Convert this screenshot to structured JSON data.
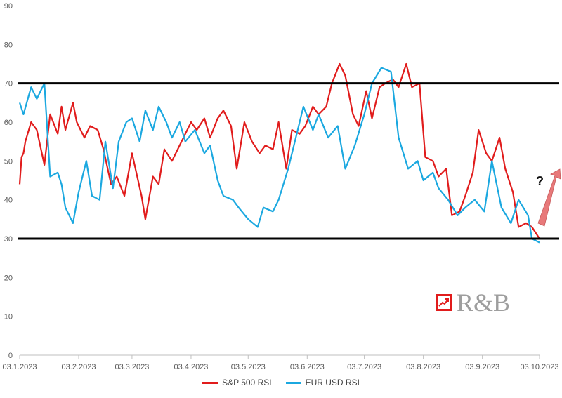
{
  "chart_data": {
    "type": "line",
    "title": "",
    "xlabel": "",
    "ylabel": "",
    "ylim": [
      0,
      90
    ],
    "yticks": [
      0,
      10,
      20,
      30,
      40,
      50,
      60,
      70,
      80,
      90
    ],
    "xlim": [
      "2023-01-03",
      "2023-10-03"
    ],
    "xticks": [
      "03.1.2023",
      "03.2.2023",
      "03.3.2023",
      "03.4.2023",
      "03.5.2023",
      "03.6.2023",
      "03.7.2023",
      "03.8.2023",
      "03.9.2023",
      "03.10.2023"
    ],
    "grid": false,
    "legend_position": "bottom",
    "horizontal_lines": [
      70,
      30
    ],
    "series": [
      {
        "name": "S&P 500 RSI",
        "color": "#e11c1c",
        "x": [
          "2023-01-03",
          "2023-01-04",
          "2023-01-05",
          "2023-01-06",
          "2023-01-09",
          "2023-01-12",
          "2023-01-16",
          "2023-01-19",
          "2023-01-23",
          "2023-01-25",
          "2023-01-27",
          "2023-01-31",
          "2023-02-02",
          "2023-02-06",
          "2023-02-09",
          "2023-02-13",
          "2023-02-16",
          "2023-02-20",
          "2023-02-23",
          "2023-02-27",
          "2023-03-03",
          "2023-03-08",
          "2023-03-10",
          "2023-03-14",
          "2023-03-17",
          "2023-03-20",
          "2023-03-24",
          "2023-03-29",
          "2023-04-03",
          "2023-04-06",
          "2023-04-10",
          "2023-04-13",
          "2023-04-17",
          "2023-04-20",
          "2023-04-24",
          "2023-04-27",
          "2023-05-01",
          "2023-05-05",
          "2023-05-09",
          "2023-05-12",
          "2023-05-16",
          "2023-05-19",
          "2023-05-23",
          "2023-05-26",
          "2023-05-30",
          "2023-06-02",
          "2023-06-06",
          "2023-06-09",
          "2023-06-13",
          "2023-06-16",
          "2023-06-20",
          "2023-06-23",
          "2023-06-27",
          "2023-06-30",
          "2023-07-04",
          "2023-07-07",
          "2023-07-11",
          "2023-07-14",
          "2023-07-18",
          "2023-07-21",
          "2023-07-25",
          "2023-07-28",
          "2023-08-01",
          "2023-08-04",
          "2023-08-08",
          "2023-08-11",
          "2023-08-15",
          "2023-08-18",
          "2023-08-22",
          "2023-08-25",
          "2023-08-29",
          "2023-09-01",
          "2023-09-05",
          "2023-09-08",
          "2023-09-12",
          "2023-09-15",
          "2023-09-19",
          "2023-09-22",
          "2023-09-26",
          "2023-09-29",
          "2023-10-03"
        ],
        "values": [
          44,
          51,
          52,
          55,
          60,
          58,
          49,
          62,
          57,
          64,
          58,
          65,
          60,
          56,
          59,
          58,
          53,
          44,
          46,
          41,
          52,
          41,
          35,
          46,
          44,
          53,
          50,
          55,
          60,
          58,
          61,
          56,
          61,
          63,
          59,
          48,
          60,
          55,
          52,
          54,
          53,
          60,
          48,
          58,
          57,
          59,
          64,
          62,
          64,
          70,
          75,
          72,
          62,
          59,
          68,
          61,
          69,
          70,
          71,
          69,
          75,
          69,
          70,
          51,
          50,
          46,
          48,
          36,
          37,
          41,
          47,
          58,
          52,
          50,
          56,
          48,
          42,
          33,
          34,
          33,
          30
        ]
      },
      {
        "name": "EUR USD RSI",
        "color": "#1ba8e0",
        "x": [
          "2023-01-03",
          "2023-01-05",
          "2023-01-09",
          "2023-01-12",
          "2023-01-16",
          "2023-01-19",
          "2023-01-23",
          "2023-01-25",
          "2023-01-27",
          "2023-01-31",
          "2023-02-03",
          "2023-02-07",
          "2023-02-10",
          "2023-02-14",
          "2023-02-17",
          "2023-02-21",
          "2023-02-24",
          "2023-02-28",
          "2023-03-03",
          "2023-03-07",
          "2023-03-10",
          "2023-03-14",
          "2023-03-17",
          "2023-03-21",
          "2023-03-24",
          "2023-03-28",
          "2023-03-31",
          "2023-04-05",
          "2023-04-10",
          "2023-04-13",
          "2023-04-17",
          "2023-04-20",
          "2023-04-25",
          "2023-04-28",
          "2023-05-03",
          "2023-05-08",
          "2023-05-11",
          "2023-05-16",
          "2023-05-19",
          "2023-05-24",
          "2023-05-29",
          "2023-06-01",
          "2023-06-06",
          "2023-06-09",
          "2023-06-14",
          "2023-06-19",
          "2023-06-23",
          "2023-06-28",
          "2023-07-03",
          "2023-07-07",
          "2023-07-12",
          "2023-07-17",
          "2023-07-21",
          "2023-07-26",
          "2023-07-31",
          "2023-08-03",
          "2023-08-08",
          "2023-08-11",
          "2023-08-16",
          "2023-08-21",
          "2023-08-25",
          "2023-08-30",
          "2023-09-04",
          "2023-09-08",
          "2023-09-13",
          "2023-09-18",
          "2023-09-22",
          "2023-09-27",
          "2023-09-29",
          "2023-10-03"
        ],
        "values": [
          65,
          62,
          69,
          66,
          70,
          46,
          47,
          44,
          38,
          34,
          42,
          50,
          41,
          40,
          55,
          43,
          55,
          60,
          61,
          55,
          63,
          58,
          64,
          60,
          56,
          60,
          55,
          58,
          52,
          54,
          45,
          41,
          40,
          38,
          35,
          33,
          38,
          37,
          40,
          48,
          58,
          64,
          58,
          62,
          56,
          59,
          48,
          54,
          62,
          70,
          74,
          73,
          56,
          48,
          50,
          45,
          47,
          43,
          40,
          36,
          38,
          40,
          37,
          50,
          38,
          34,
          40,
          36,
          30,
          29
        ]
      }
    ],
    "annotation": {
      "text": "?",
      "arrow_color": "#e8797a"
    },
    "watermark": {
      "text": "R&B"
    }
  }
}
